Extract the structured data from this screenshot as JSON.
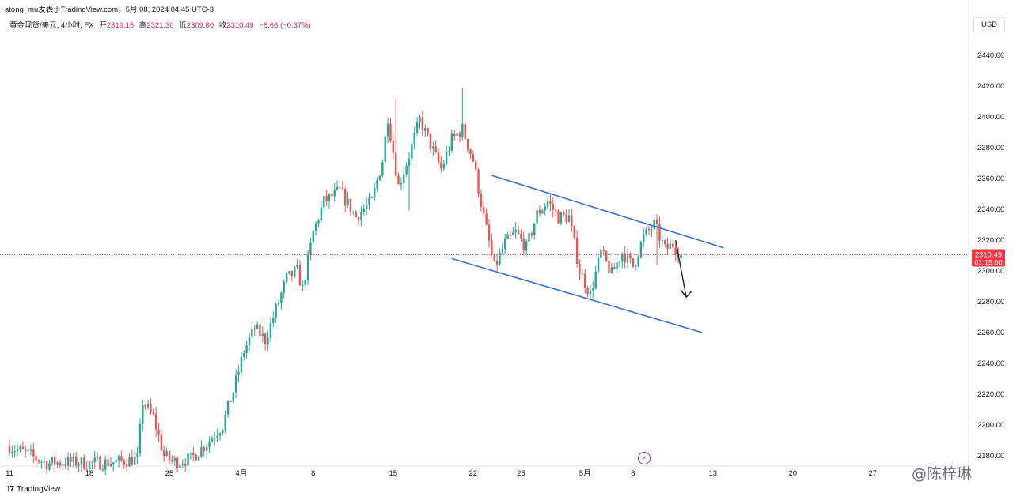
{
  "header": {
    "publish_line": "atong_mu发表于TradingView.com，5月 08, 2024 04:45 UTC-3"
  },
  "legend": {
    "symbol": "黄金现货/美元, 4小时, FX",
    "open_label": "开",
    "open_value": "2319.15",
    "high_label": "高",
    "high_value": "2321.30",
    "low_label": "低",
    "low_value": "2309.80",
    "close_label": "收",
    "close_value": "2310.49",
    "change": "−8.66 (−0.37%)"
  },
  "currency_button": "USD",
  "brand_label": "TradingView",
  "watermark": "@陈梓琳",
  "colors": {
    "up": "#26a69a",
    "down": "#ef5350",
    "channel": "#3b6fd4",
    "arrow": "#222222",
    "price_tag": "#f23645"
  },
  "chart_data": {
    "type": "candlestick",
    "symbol": "XAU/USD",
    "timeframe": "4h",
    "ylim": [
      2170,
      2450
    ],
    "y_ticks": [
      2180,
      2200,
      2220,
      2240,
      2260,
      2280,
      2300,
      2320,
      2340,
      2360,
      2380,
      2400,
      2420,
      2440
    ],
    "y_tick_labels": [
      "2180.00",
      "2200.00",
      "2220.00",
      "2240.00",
      "2260.00",
      "2280.00",
      "2300.00",
      "2320.00",
      "2340.00",
      "2360.00",
      "2380.00",
      "2400.00",
      "2420.00",
      "2440.00"
    ],
    "x_tick_labels": [
      {
        "label": "11",
        "bar": 0
      },
      {
        "label": "18",
        "bar": 30
      },
      {
        "label": "25",
        "bar": 60
      },
      {
        "label": "4月",
        "bar": 87
      },
      {
        "label": "8",
        "bar": 114
      },
      {
        "label": "15",
        "bar": 144
      },
      {
        "label": "22",
        "bar": 174
      },
      {
        "label": "25",
        "bar": 192
      },
      {
        "label": "5月",
        "bar": 216
      },
      {
        "label": "6",
        "bar": 234
      },
      {
        "label": "13",
        "bar": 264
      },
      {
        "label": "20",
        "bar": 294
      },
      {
        "label": "27",
        "bar": 324
      }
    ],
    "total_bar_slots": 360,
    "candles_path": [
      [
        0,
        2186
      ],
      [
        8,
        2180
      ],
      [
        14,
        2175
      ],
      [
        22,
        2176
      ],
      [
        30,
        2175
      ],
      [
        40,
        2176
      ],
      [
        48,
        2178
      ],
      [
        50,
        2215
      ],
      [
        54,
        2205
      ],
      [
        58,
        2180
      ],
      [
        62,
        2176
      ],
      [
        68,
        2178
      ],
      [
        74,
        2188
      ],
      [
        80,
        2200
      ],
      [
        84,
        2222
      ],
      [
        88,
        2248
      ],
      [
        92,
        2263
      ],
      [
        96,
        2255
      ],
      [
        100,
        2275
      ],
      [
        104,
        2295
      ],
      [
        108,
        2300
      ],
      [
        110,
        2288
      ],
      [
        114,
        2325
      ],
      [
        118,
        2345
      ],
      [
        124,
        2352
      ],
      [
        130,
        2335
      ],
      [
        136,
        2345
      ],
      [
        140,
        2372
      ],
      [
        142,
        2400
      ],
      [
        146,
        2355
      ],
      [
        150,
        2375
      ],
      [
        154,
        2398
      ],
      [
        158,
        2382
      ],
      [
        162,
        2366
      ],
      [
        166,
        2385
      ],
      [
        170,
        2392
      ],
      [
        174,
        2372
      ],
      [
        178,
        2335
      ],
      [
        182,
        2302
      ],
      [
        186,
        2318
      ],
      [
        190,
        2325
      ],
      [
        194,
        2315
      ],
      [
        198,
        2337
      ],
      [
        202,
        2345
      ],
      [
        206,
        2335
      ],
      [
        210,
        2335
      ],
      [
        214,
        2300
      ],
      [
        218,
        2285
      ],
      [
        222,
        2312
      ],
      [
        226,
        2298
      ],
      [
        230,
        2312
      ],
      [
        234,
        2303
      ],
      [
        238,
        2322
      ],
      [
        242,
        2330
      ],
      [
        246,
        2314
      ],
      [
        249,
        2317
      ],
      [
        252,
        2310.49
      ]
    ],
    "seed": 7,
    "last_price": 2310.49,
    "last_price_label": "2310.49",
    "countdown": "01:15:00",
    "channel": {
      "upper": [
        {
          "bar": 181,
          "price": 2362
        },
        {
          "bar": 268,
          "price": 2315
        }
      ],
      "lower": [
        {
          "bar": 166,
          "price": 2308
        },
        {
          "bar": 260,
          "price": 2260
        }
      ]
    },
    "projection_arrow": {
      "from": {
        "bar": 250,
        "price": 2320
      },
      "to": {
        "bar": 254,
        "price": 2283
      }
    }
  }
}
